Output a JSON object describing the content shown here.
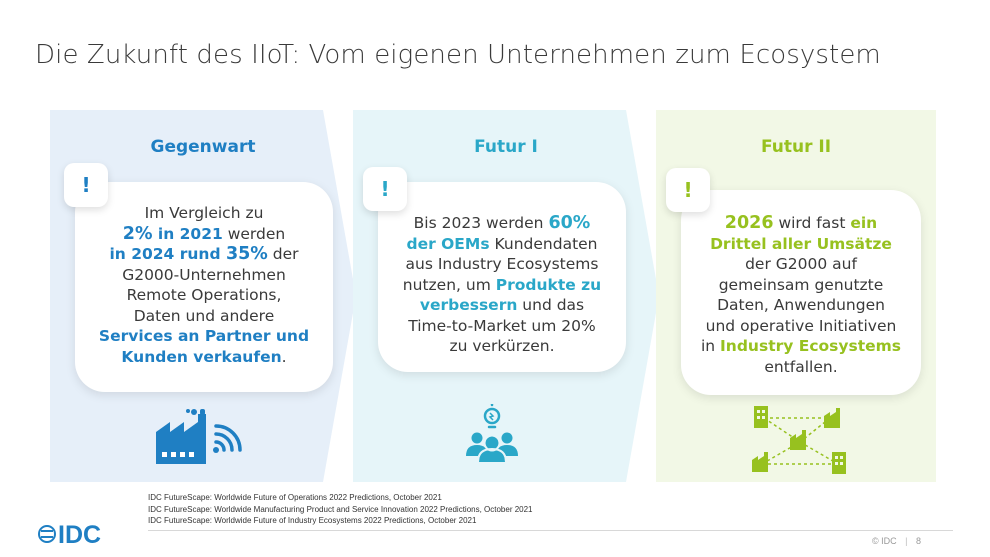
{
  "title": "Die Zukunft des IIoT: Vom eigenen Unternehmen zum Ecosystem",
  "colors": {
    "panel1_heading": "#1f7fc3",
    "panel2_heading": "#2aa7c8",
    "panel3_heading": "#97c11f",
    "panel1_bg": "#e6eff9",
    "panel2_bg": "#e6f5f9",
    "panel3_bg": "#f2f8e6"
  },
  "panels": [
    {
      "heading": "Gegenwart",
      "badge": "!",
      "icon": "factory-wifi-icon",
      "lines": [
        {
          "a": "Im Vergleich zu"
        },
        {
          "a": "2%",
          "b": " in 2021",
          "c": " werden"
        },
        {
          "a": "in 2024 rund ",
          "b": "35%",
          "c": " der"
        },
        {
          "a": "G2000-Unternehmen"
        },
        {
          "a": "Remote Operations,"
        },
        {
          "a": "Daten und andere"
        },
        {
          "a": "Services an Partner und"
        },
        {
          "a": "Kunden verkaufen",
          "b": "."
        }
      ]
    },
    {
      "heading": "Futur I",
      "badge": "!",
      "icon": "people-lightbulb-icon",
      "lines": [
        {
          "a": "Bis 2023 werden ",
          "b": "60%"
        },
        {
          "a": "der OEMs",
          "b": " Kundendaten"
        },
        {
          "a": "aus Industry Ecosystems"
        },
        {
          "a": "nutzen, um ",
          "b": "Produkte zu"
        },
        {
          "a": "verbessern",
          "b": " und das"
        },
        {
          "a": "Time-to-Market um 20%"
        },
        {
          "a": "zu verkürzen."
        }
      ]
    },
    {
      "heading": "Futur II",
      "badge": "!",
      "icon": "ecosystem-network-icon",
      "lines": [
        {
          "a": "2026",
          "b": " wird fast ",
          "c": "ein"
        },
        {
          "a": "Drittel aller Umsätze"
        },
        {
          "a": "der G2000 auf"
        },
        {
          "a": "gemeinsam genutzte"
        },
        {
          "a": "Daten, Anwendungen"
        },
        {
          "a": "und operative Initiativen"
        },
        {
          "a": "in ",
          "b": "Industry Ecosystems"
        },
        {
          "a": "entfallen."
        }
      ]
    }
  ],
  "footnotes": [
    "IDC FutureScape: Worldwide Future of Operations 2022 Predictions, October 2021",
    "IDC FutureScape: Worldwide Manufacturing Product and Service Innovation 2022 Predictions, October 2021",
    "IDC FutureScape: Worldwide Future of Industry Ecosystems 2022 Predictions, October 2021"
  ],
  "logo": "IDC",
  "copyright": "© IDC",
  "page_number": "8"
}
